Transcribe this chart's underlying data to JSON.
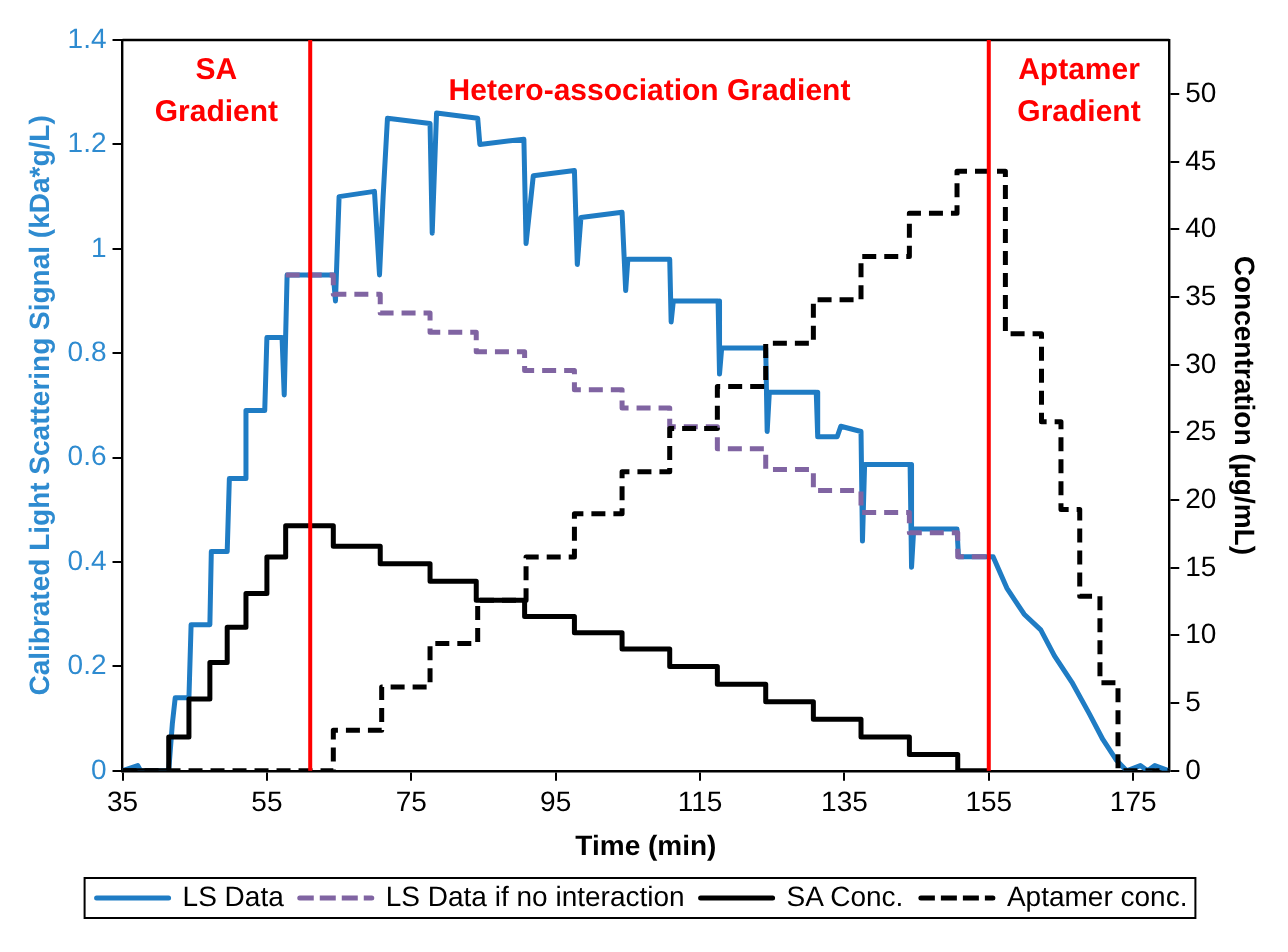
{
  "chart_data": {
    "type": "line",
    "xlabel": "Time (min)",
    "ylabel": "Calibrated Light Scattering Signal (kDa*g/L)",
    "y2label": "Concentration (µg/mL)",
    "xlim": [
      35,
      180
    ],
    "xticks": [
      35,
      55,
      75,
      95,
      115,
      135,
      155,
      175
    ],
    "ylim": [
      0,
      1.4
    ],
    "yticks": [
      0,
      0.2,
      0.4,
      0.6,
      0.8,
      1,
      1.2,
      1.4
    ],
    "y2lim": [
      0,
      54
    ],
    "y2ticks": [
      0,
      5,
      10,
      15,
      20,
      25,
      30,
      35,
      40,
      45,
      50
    ],
    "grid": false,
    "legend": "bottom",
    "marker": "none",
    "ref_lines": [
      {
        "axis": "x",
        "value": 61,
        "color": "#ff0000"
      },
      {
        "axis": "x",
        "value": 155,
        "color": "#ff0000"
      }
    ],
    "annotations": [
      "SA\nGradient",
      "Hetero-association Gradient",
      "Aptamer\nGradient"
    ],
    "series": [
      {
        "name": "LS Data",
        "type": "line",
        "color": "#1f7cc4",
        "line_style": "solid",
        "x": [
          35,
          37.1,
          37.5,
          41.4,
          41.9,
          42.3,
          44.2,
          44.5,
          47.1,
          47.3,
          49.5,
          49.8,
          51.9,
          52.1,
          54.7,
          55,
          57.1,
          57.4,
          57.8,
          64.2,
          64.5,
          65,
          69.9,
          70.6,
          71.1,
          71.7,
          77.6,
          77.9,
          78.5,
          84.2,
          84.5,
          90.6,
          90.9,
          91.9,
          97.6,
          98,
          98.5,
          104.2,
          104.7,
          105,
          110.8,
          111,
          111.3,
          117.5,
          117.7,
          118,
          124.1,
          124.3,
          124.6,
          131.1,
          131.3,
          134,
          134.5,
          137.3,
          137.5,
          137.8,
          144.1,
          144.3,
          144.6,
          150.6,
          150.8,
          155.6,
          157.5,
          159.9,
          162.2,
          164.1,
          166.5,
          168.9,
          170.8,
          172.7,
          174.1,
          176,
          177,
          178,
          180
        ],
        "values": [
          0,
          0.01,
          0,
          0,
          0.09,
          0.14,
          0.14,
          0.28,
          0.28,
          0.42,
          0.42,
          0.56,
          0.56,
          0.69,
          0.69,
          0.83,
          0.83,
          0.72,
          0.95,
          0.95,
          0.9,
          1.1,
          1.11,
          0.95,
          1.1,
          1.25,
          1.24,
          1.03,
          1.26,
          1.25,
          1.2,
          1.21,
          1.01,
          1.14,
          1.15,
          0.97,
          1.06,
          1.07,
          0.92,
          0.98,
          0.98,
          0.86,
          0.9,
          0.9,
          0.76,
          0.81,
          0.81,
          0.65,
          0.725,
          0.725,
          0.64,
          0.64,
          0.66,
          0.65,
          0.44,
          0.587,
          0.587,
          0.39,
          0.463,
          0.463,
          0.41,
          0.41,
          0.35,
          0.3,
          0.27,
          0.22,
          0.17,
          0.11,
          0.06,
          0.02,
          0,
          0.01,
          0,
          0.01,
          0
        ]
      },
      {
        "name": "LS Data if no interaction",
        "type": "step",
        "color": "#8064a2",
        "line_style": "dashed",
        "x": [
          57.6,
          64.2,
          70.7,
          77.6,
          84,
          90.7,
          97.6,
          104.2,
          110.8,
          117.4,
          124.1,
          130.7,
          137.3,
          144,
          150.7,
          155
        ],
        "values": [
          0.95,
          0.913,
          0.877,
          0.84,
          0.803,
          0.767,
          0.73,
          0.695,
          0.659,
          0.617,
          0.577,
          0.537,
          0.495,
          0.456,
          0.41,
          0.41
        ]
      },
      {
        "name": "SA Conc.",
        "type": "step",
        "axis": "y2",
        "color": "#000000",
        "line_style": "solid",
        "x": [
          35,
          41.4,
          44.2,
          47.1,
          49.5,
          52.1,
          55,
          57.6,
          64.2,
          70.7,
          77.6,
          84,
          90.7,
          97.6,
          104.2,
          110.8,
          117.4,
          124.1,
          130.7,
          137.3,
          144,
          150.7,
          155
        ],
        "values": [
          0,
          2.5,
          5.3,
          8,
          10.6,
          13.1,
          15.8,
          18.1,
          16.6,
          15.3,
          14,
          12.6,
          11.4,
          10.2,
          9,
          7.7,
          6.4,
          5.1,
          3.8,
          2.5,
          1.2,
          0,
          0
        ]
      },
      {
        "name": "Aptamer conc.",
        "type": "step",
        "axis": "y2",
        "color": "#000000",
        "line_style": "dashed",
        "x": [
          35,
          64.2,
          70.9,
          77.6,
          84.2,
          90.9,
          97.6,
          104.2,
          110.8,
          117.4,
          124.1,
          130.7,
          137.3,
          144,
          150.6,
          157.3,
          162.3,
          165,
          167.6,
          170.4,
          172.9,
          180
        ],
        "values": [
          0,
          3,
          6.2,
          9.4,
          12.6,
          15.8,
          19,
          22.1,
          25.3,
          28.4,
          31.6,
          34.8,
          38,
          41.2,
          44.3,
          32.3,
          25.8,
          19.3,
          12.9,
          6.5,
          0,
          0
        ]
      }
    ]
  }
}
